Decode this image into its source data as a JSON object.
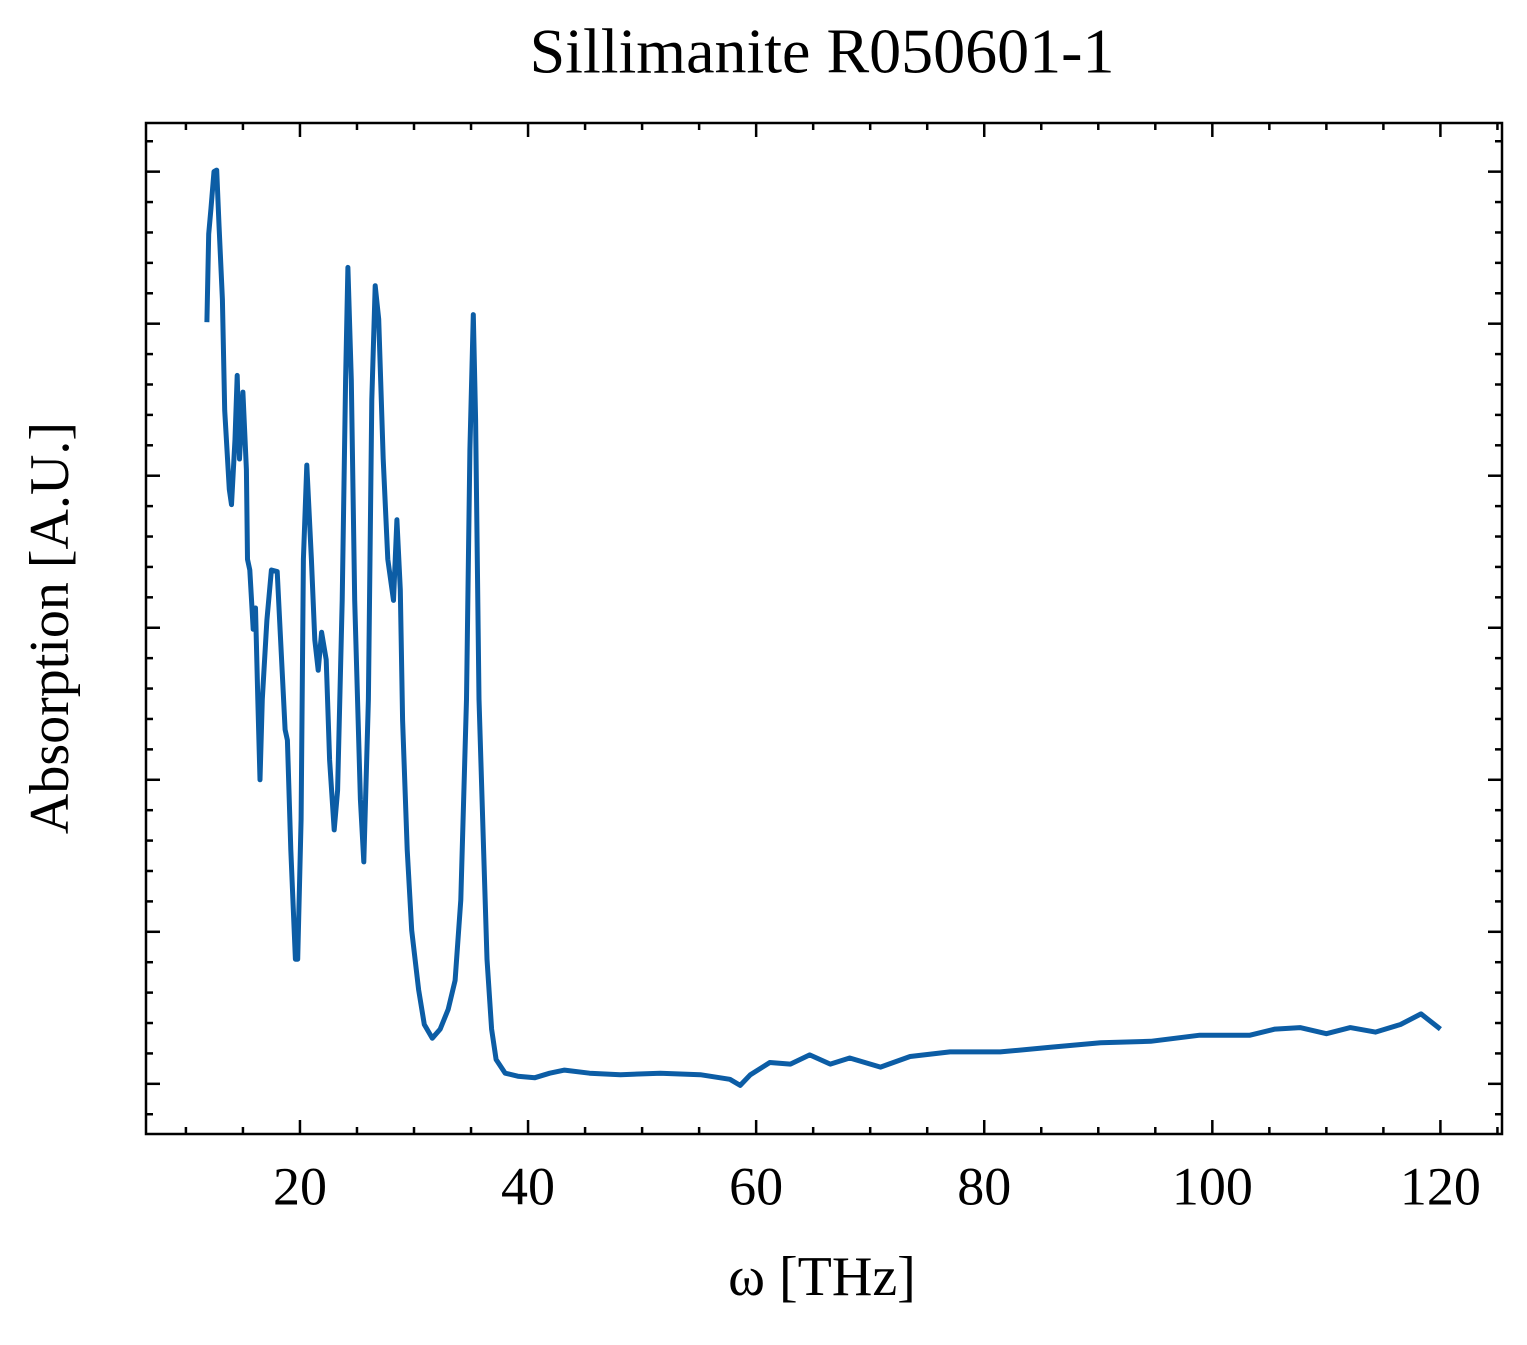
{
  "chart_data": {
    "type": "line",
    "title": "Sillimanite R050601-1",
    "x_label": "ω [THz]",
    "y_label": "Absorption [A.U.]",
    "x": [
      11.84,
      12.0,
      12.2,
      12.46,
      12.7,
      12.9,
      13.2,
      13.4,
      13.8,
      14.0,
      14.3,
      14.5,
      14.7,
      15.0,
      15.3,
      15.4,
      15.6,
      15.9,
      16.1,
      16.3,
      16.5,
      16.7,
      17.1,
      17.5,
      18.0,
      18.3,
      18.7,
      18.9,
      19.2,
      19.6,
      19.8,
      20.1,
      20.3,
      20.6,
      21.0,
      21.3,
      21.6,
      21.9,
      22.3,
      22.6,
      23.0,
      23.3,
      23.7,
      24.0,
      24.2,
      24.5,
      24.8,
      25.3,
      25.6,
      26.0,
      26.3,
      26.6,
      26.9,
      27.3,
      27.7,
      28.2,
      28.5,
      28.8,
      29.0,
      29.4,
      29.8,
      30.4,
      30.9,
      31.6,
      32.3,
      33.0,
      33.6,
      34.1,
      34.6,
      34.9,
      35.2,
      35.4,
      35.7,
      36.1,
      36.4,
      36.8,
      37.2,
      38.0,
      39.1,
      40.6,
      41.9,
      43.2,
      45.4,
      48.1,
      51.6,
      55.1,
      57.7,
      58.6,
      59.5,
      61.2,
      63.0,
      64.7,
      66.5,
      68.2,
      70.9,
      73.5,
      77.0,
      81.4,
      85.8,
      90.2,
      94.6,
      98.9,
      103.3,
      105.5,
      107.7,
      110.0,
      112.1,
      114.3,
      116.5,
      118.3,
      120.0
    ],
    "series": [
      {
        "name": "Absorption",
        "color": "#0c5da5",
        "values": [
          5.01,
          5.59,
          5.76,
          6.0,
          6.01,
          5.65,
          5.16,
          4.43,
          3.91,
          3.81,
          4.24,
          4.66,
          4.11,
          4.55,
          4.04,
          3.45,
          3.38,
          2.99,
          3.13,
          2.53,
          2.0,
          2.53,
          3.05,
          3.38,
          3.37,
          2.92,
          2.33,
          2.26,
          1.54,
          0.82,
          0.82,
          1.74,
          3.45,
          4.07,
          3.45,
          2.92,
          2.72,
          2.97,
          2.79,
          2.13,
          1.67,
          1.93,
          3.18,
          4.63,
          5.37,
          4.63,
          3.18,
          1.87,
          1.46,
          2.53,
          4.5,
          5.25,
          5.03,
          4.11,
          3.45,
          3.18,
          3.71,
          3.25,
          2.39,
          1.54,
          1.01,
          0.62,
          0.39,
          0.3,
          0.36,
          0.49,
          0.68,
          1.21,
          2.53,
          4.17,
          5.06,
          4.37,
          2.53,
          1.54,
          0.82,
          0.36,
          0.16,
          0.07,
          0.05,
          0.04,
          0.07,
          0.09,
          0.07,
          0.06,
          0.07,
          0.06,
          0.03,
          -0.01,
          0.06,
          0.14,
          0.13,
          0.19,
          0.13,
          0.17,
          0.11,
          0.18,
          0.21,
          0.21,
          0.24,
          0.27,
          0.28,
          0.32,
          0.32,
          0.36,
          0.37,
          0.33,
          0.37,
          0.34,
          0.39,
          0.46,
          0.36
        ]
      }
    ],
    "xlim": [
      6.5,
      125.4
    ],
    "xticks": [
      20,
      40,
      60,
      80,
      100,
      120
    ],
    "ylim": [
      -0.33,
      6.32
    ],
    "yticks": [
      0,
      1,
      2,
      3,
      4,
      5,
      6
    ]
  }
}
